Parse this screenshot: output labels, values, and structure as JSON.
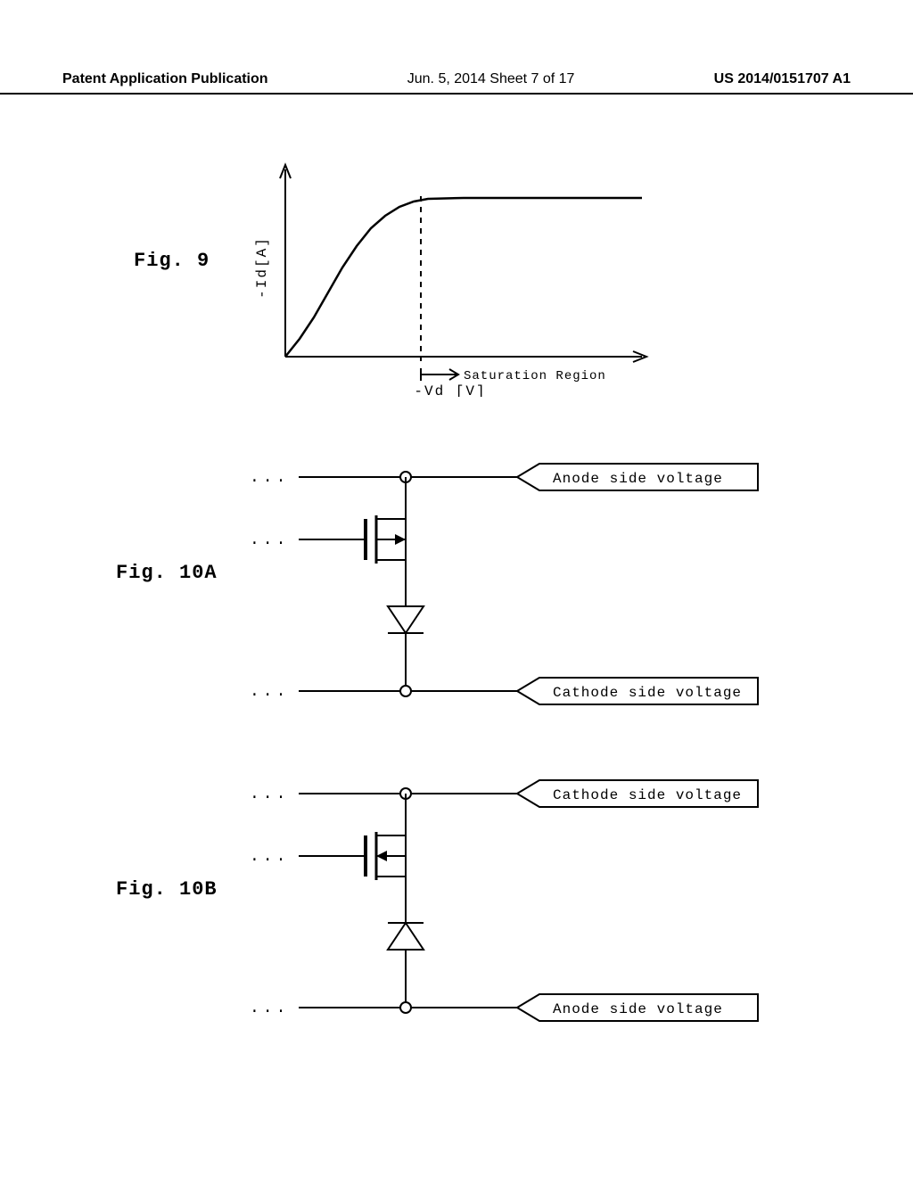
{
  "header": {
    "left": "Patent Application Publication",
    "center": "Jun. 5, 2014  Sheet 7 of 17",
    "right": "US 2014/0151707 A1"
  },
  "fig9": {
    "label": "Fig. 9",
    "y_axis_label": "-Id[A]",
    "x_axis_label": "-Vd [V]",
    "annotation": "Saturation Region",
    "chart": {
      "type": "line",
      "stroke": "#000000",
      "stroke_width": 2,
      "background": "#ffffff",
      "x_axis": {
        "min": 0,
        "max": 100
      },
      "y_axis": {
        "min": 0,
        "max": 100
      },
      "saturation_start_x": 38,
      "curve_points": [
        [
          0,
          0
        ],
        [
          4,
          10
        ],
        [
          8,
          22
        ],
        [
          12,
          36
        ],
        [
          16,
          50
        ],
        [
          20,
          62
        ],
        [
          24,
          72
        ],
        [
          28,
          79
        ],
        [
          32,
          84
        ],
        [
          36,
          87
        ],
        [
          40,
          88.5
        ],
        [
          50,
          89
        ],
        [
          70,
          89
        ],
        [
          100,
          89
        ]
      ]
    }
  },
  "fig10a": {
    "label": "Fig. 10A",
    "top_box_text": "Anode side voltage",
    "bottom_box_text": "Cathode side voltage",
    "transistor_type": "p-channel",
    "diode_direction": "down",
    "stroke": "#000000",
    "stroke_width": 2
  },
  "fig10b": {
    "label": "Fig. 10B",
    "top_box_text": "Cathode side voltage",
    "bottom_box_text": "Anode side voltage",
    "transistor_type": "n-channel",
    "diode_direction": "up",
    "stroke": "#000000",
    "stroke_width": 2
  }
}
